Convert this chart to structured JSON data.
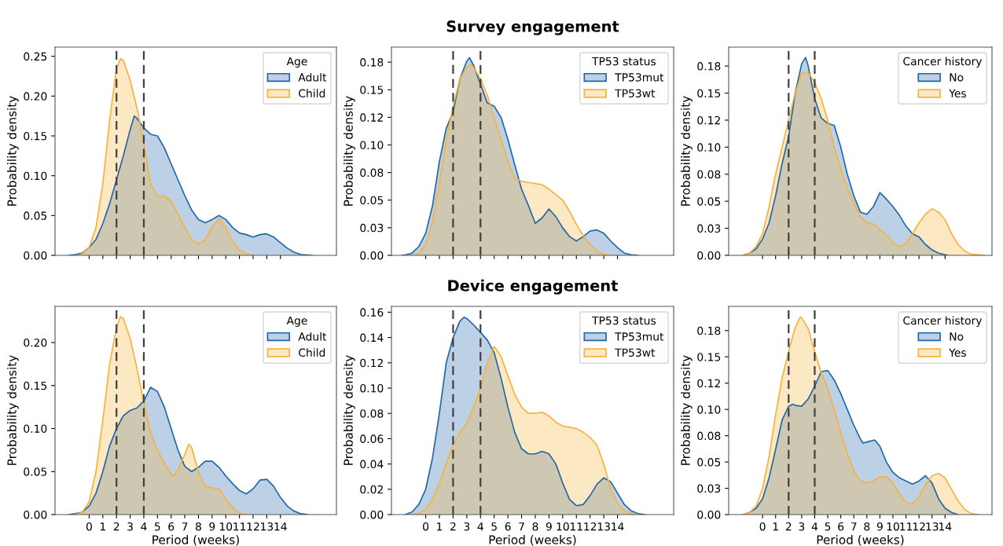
{
  "chart_data": [
    {
      "type": "area",
      "legend_title": "Age",
      "ylabel": "Probability density",
      "legend": "top right",
      "tick_labels": "y",
      "grid": false,
      "xlim": [
        -2.5,
        18.1
      ],
      "xticks": [
        0,
        1,
        2,
        3,
        4,
        5,
        6,
        7,
        8,
        9,
        10,
        11,
        12,
        13,
        14
      ],
      "ylim": [
        0,
        0.2615
      ],
      "yticks": [
        {
          "value": 0,
          "label": "0.00"
        },
        {
          "value": 0.05,
          "label": "0.05"
        },
        {
          "value": 0.1,
          "label": "0.10"
        },
        {
          "value": 0.15,
          "label": "0.15"
        },
        {
          "value": 0.2,
          "label": "0.20"
        },
        {
          "value": 0.25,
          "label": "0.25"
        }
      ],
      "ref_lines": [
        {
          "axis": "x",
          "value": 2,
          "color": "#404040",
          "line_style": "dashed"
        },
        {
          "axis": "x",
          "value": 4,
          "color": "#404040",
          "line_style": "dashed"
        }
      ],
      "series": [
        {
          "name": "Adult",
          "color": "#2066a8",
          "x": [
            -1.5,
            -1,
            -0.5,
            0,
            0.5,
            1,
            1.5,
            2,
            2.5,
            3,
            3.3,
            3.5,
            4,
            4.5,
            5,
            5.5,
            6,
            6.5,
            7,
            7.5,
            8,
            8.5,
            9,
            9.5,
            10,
            10.5,
            11,
            11.5,
            12,
            12.5,
            13,
            13.5,
            14,
            14.5,
            15,
            15.5,
            16.3
          ],
          "values": [
            0,
            0.001,
            0.003,
            0.01,
            0.02,
            0.04,
            0.065,
            0.095,
            0.125,
            0.158,
            0.175,
            0.172,
            0.16,
            0.152,
            0.15,
            0.135,
            0.115,
            0.095,
            0.075,
            0.057,
            0.045,
            0.041,
            0.045,
            0.05,
            0.045,
            0.035,
            0.028,
            0.026,
            0.023,
            0.026,
            0.027,
            0.023,
            0.016,
            0.009,
            0.004,
            0.001,
            0
          ]
        },
        {
          "name": "Child",
          "color": "#f7b23b",
          "x": [
            -0.8,
            -0.5,
            0,
            0.5,
            1,
            1.5,
            2,
            2.3,
            2.5,
            3,
            3.5,
            4,
            4.5,
            5,
            5.5,
            6,
            6.5,
            7,
            7.5,
            8,
            8.5,
            9,
            9.5,
            10,
            10.5,
            11,
            11.5,
            12
          ],
          "values": [
            0,
            0.002,
            0.01,
            0.035,
            0.09,
            0.17,
            0.235,
            0.247,
            0.245,
            0.22,
            0.185,
            0.14,
            0.09,
            0.073,
            0.075,
            0.068,
            0.052,
            0.035,
            0.02,
            0.014,
            0.02,
            0.035,
            0.046,
            0.035,
            0.018,
            0.007,
            0.002,
            0
          ]
        }
      ]
    },
    {
      "type": "area",
      "title": "Survey engagement",
      "legend_title": "TP53 status",
      "ylabel": "Probability density",
      "legend": "top right",
      "tick_labels": "y",
      "grid": false,
      "xlim": [
        -2.5,
        18.1
      ],
      "xticks": [
        0,
        1,
        2,
        3,
        4,
        5,
        6,
        7,
        8,
        9,
        10,
        11,
        12,
        13,
        14
      ],
      "ylim": [
        0,
        0.1886
      ],
      "yticks": [
        {
          "value": 0,
          "label": "0.00"
        },
        {
          "value": 0.025,
          "label": "0.03"
        },
        {
          "value": 0.05,
          "label": "0.05"
        },
        {
          "value": 0.075,
          "label": "0.08"
        },
        {
          "value": 0.1,
          "label": "0.10"
        },
        {
          "value": 0.125,
          "label": "0.12"
        },
        {
          "value": 0.15,
          "label": "0.15"
        },
        {
          "value": 0.175,
          "label": "0.18"
        }
      ],
      "ref_lines": [
        {
          "axis": "x",
          "value": 2,
          "color": "#404040",
          "line_style": "dashed"
        },
        {
          "axis": "x",
          "value": 4,
          "color": "#404040",
          "line_style": "dashed"
        }
      ],
      "series": [
        {
          "name": "TP53mut",
          "color": "#2066a8",
          "x": [
            -1.7,
            -1.5,
            -1,
            -0.5,
            0,
            0.5,
            1,
            1.5,
            2,
            2.5,
            3,
            3.2,
            3.5,
            4,
            4.5,
            5,
            5.5,
            6,
            6.5,
            7,
            7.5,
            8,
            8.5,
            9,
            9.5,
            10,
            10.5,
            11,
            11.5,
            12,
            12.5,
            13,
            13.5,
            14,
            14.5,
            15,
            15.5
          ],
          "values": [
            0,
            0.0003,
            0.002,
            0.008,
            0.02,
            0.045,
            0.085,
            0.115,
            0.13,
            0.16,
            0.176,
            0.179,
            0.172,
            0.155,
            0.138,
            0.135,
            0.125,
            0.105,
            0.082,
            0.06,
            0.045,
            0.029,
            0.034,
            0.042,
            0.035,
            0.025,
            0.017,
            0.013,
            0.017,
            0.022,
            0.023,
            0.02,
            0.013,
            0.007,
            0.002,
            0.0005,
            0
          ]
        },
        {
          "name": "TP53wt",
          "color": "#f7b23b",
          "x": [
            -0.9,
            -0.5,
            0,
            0.5,
            1,
            1.5,
            2,
            2.5,
            3,
            3.3,
            3.5,
            4,
            4.5,
            5,
            5.5,
            6,
            6.5,
            7,
            7.5,
            8,
            8.5,
            9,
            9.5,
            10,
            10.5,
            11,
            11.5,
            12,
            12.5,
            13,
            13.5
          ],
          "values": [
            0,
            0.002,
            0.01,
            0.03,
            0.065,
            0.105,
            0.135,
            0.16,
            0.17,
            0.173,
            0.17,
            0.16,
            0.145,
            0.125,
            0.105,
            0.085,
            0.07,
            0.067,
            0.066,
            0.065,
            0.064,
            0.06,
            0.055,
            0.05,
            0.04,
            0.028,
            0.018,
            0.01,
            0.004,
            0.001,
            0
          ]
        }
      ]
    },
    {
      "type": "area",
      "legend_title": "Cancer history",
      "ylabel": "Probability density",
      "legend": "top right",
      "tick_labels": "y",
      "grid": false,
      "xlim": [
        -2.6,
        17.6
      ],
      "xticks": [
        0,
        1,
        2,
        3,
        4,
        5,
        6,
        7,
        8,
        9,
        10,
        11,
        12,
        13,
        14
      ],
      "ylim": [
        0,
        0.1925
      ],
      "yticks": [
        {
          "value": 0,
          "label": "0.00"
        },
        {
          "value": 0.025,
          "label": "0.03"
        },
        {
          "value": 0.05,
          "label": "0.05"
        },
        {
          "value": 0.075,
          "label": "0.08"
        },
        {
          "value": 0.1,
          "label": "0.10"
        },
        {
          "value": 0.125,
          "label": "0.12"
        },
        {
          "value": 0.15,
          "label": "0.15"
        },
        {
          "value": 0.175,
          "label": "0.18"
        }
      ],
      "ref_lines": [
        {
          "axis": "x",
          "value": 2,
          "color": "#404040",
          "line_style": "dashed"
        },
        {
          "axis": "x",
          "value": 4,
          "color": "#404040",
          "line_style": "dashed"
        }
      ],
      "series": [
        {
          "name": "No",
          "color": "#2066a8",
          "x": [
            -1.5,
            -1,
            -0.5,
            0,
            0.5,
            1,
            1.5,
            2,
            2.5,
            3,
            3.3,
            3.5,
            4,
            4.5,
            5,
            5.5,
            6,
            6.5,
            7,
            7.5,
            8,
            8.5,
            9,
            9.5,
            10,
            10.5,
            11,
            11.5,
            12,
            12.5,
            13,
            13.5,
            14.2
          ],
          "values": [
            0,
            0.002,
            0.006,
            0.015,
            0.03,
            0.055,
            0.085,
            0.11,
            0.15,
            0.177,
            0.183,
            0.175,
            0.145,
            0.127,
            0.122,
            0.12,
            0.1,
            0.075,
            0.055,
            0.04,
            0.038,
            0.045,
            0.058,
            0.052,
            0.045,
            0.037,
            0.027,
            0.02,
            0.017,
            0.01,
            0.005,
            0.002,
            0
          ]
        },
        {
          "name": "Yes",
          "color": "#f7b23b",
          "x": [
            -1.5,
            -1,
            -0.5,
            0,
            0.5,
            1,
            1.5,
            2,
            2.5,
            3,
            3.3,
            3.5,
            4,
            4.5,
            5,
            5.5,
            6,
            6.5,
            7,
            7.5,
            8,
            8.5,
            9,
            9.5,
            10,
            10.5,
            11,
            11.5,
            12,
            12.5,
            13,
            13.5,
            14,
            14.5,
            15,
            15.5,
            16,
            17
          ],
          "values": [
            0,
            0.002,
            0.008,
            0.02,
            0.045,
            0.075,
            0.1,
            0.125,
            0.15,
            0.168,
            0.169,
            0.169,
            0.16,
            0.145,
            0.125,
            0.1,
            0.08,
            0.062,
            0.048,
            0.036,
            0.03,
            0.029,
            0.024,
            0.019,
            0.012,
            0.008,
            0.011,
            0.02,
            0.03,
            0.038,
            0.043,
            0.04,
            0.033,
            0.02,
            0.01,
            0.004,
            0.001,
            0
          ]
        }
      ]
    },
    {
      "type": "area",
      "legend_title": "Age",
      "xlabel": "Period (weeks)",
      "ylabel": "Probability density",
      "legend": "top right",
      "grid": false,
      "xlim": [
        -2.5,
        18.1
      ],
      "xticks": [
        0,
        1,
        2,
        3,
        4,
        5,
        6,
        7,
        8,
        9,
        10,
        11,
        12,
        13,
        14
      ],
      "ylim": [
        0,
        0.242
      ],
      "yticks": [
        {
          "value": 0,
          "label": "0.00"
        },
        {
          "value": 0.05,
          "label": "0.05"
        },
        {
          "value": 0.1,
          "label": "0.10"
        },
        {
          "value": 0.15,
          "label": "0.15"
        },
        {
          "value": 0.2,
          "label": "0.20"
        }
      ],
      "ref_lines": [
        {
          "axis": "x",
          "value": 2,
          "color": "#404040",
          "line_style": "dashed"
        },
        {
          "axis": "x",
          "value": 4,
          "color": "#404040",
          "line_style": "dashed"
        }
      ],
      "series": [
        {
          "name": "Adult",
          "color": "#2066a8",
          "x": [
            -1.5,
            -1,
            -0.5,
            0,
            0.5,
            1,
            1.5,
            2,
            2.5,
            3,
            3.5,
            4,
            4.5,
            5,
            5.5,
            6,
            6.5,
            7,
            7.5,
            8,
            8.5,
            9,
            9.5,
            10,
            10.5,
            11,
            11.5,
            12,
            12.5,
            13,
            13.5,
            14,
            14.5,
            15,
            15.5,
            16
          ],
          "values": [
            0,
            0.001,
            0.003,
            0.01,
            0.025,
            0.05,
            0.08,
            0.1,
            0.115,
            0.121,
            0.124,
            0.132,
            0.148,
            0.143,
            0.125,
            0.1,
            0.075,
            0.056,
            0.05,
            0.055,
            0.062,
            0.062,
            0.055,
            0.045,
            0.036,
            0.028,
            0.024,
            0.03,
            0.04,
            0.041,
            0.033,
            0.02,
            0.01,
            0.004,
            0.001,
            0
          ]
        },
        {
          "name": "Child",
          "color": "#f7b23b",
          "x": [
            -1,
            -0.5,
            0,
            0.5,
            1,
            1.5,
            2,
            2.3,
            2.5,
            3,
            3.5,
            4,
            4.5,
            5,
            5.5,
            6,
            6.2,
            6.5,
            7,
            7.3,
            7.5,
            8,
            8.5,
            9,
            9.5,
            10,
            10.5,
            11,
            11.5
          ],
          "values": [
            0,
            0.003,
            0.015,
            0.05,
            0.11,
            0.175,
            0.218,
            0.23,
            0.228,
            0.205,
            0.17,
            0.13,
            0.095,
            0.075,
            0.06,
            0.047,
            0.045,
            0.052,
            0.07,
            0.082,
            0.078,
            0.05,
            0.033,
            0.031,
            0.03,
            0.018,
            0.008,
            0.002,
            0
          ]
        }
      ]
    },
    {
      "type": "area",
      "title": "Device engagement",
      "legend_title": "TP53 status",
      "xlabel": "Period (weeks)",
      "ylabel": "Probability density",
      "legend": "top right",
      "grid": false,
      "xlim": [
        -2.5,
        18.1
      ],
      "xticks": [
        0,
        1,
        2,
        3,
        4,
        5,
        6,
        7,
        8,
        9,
        10,
        11,
        12,
        13,
        14
      ],
      "ylim": [
        0,
        0.1646
      ],
      "yticks": [
        {
          "value": 0,
          "label": "0.00"
        },
        {
          "value": 0.02,
          "label": "0.02"
        },
        {
          "value": 0.04,
          "label": "0.04"
        },
        {
          "value": 0.06,
          "label": "0.06"
        },
        {
          "value": 0.08,
          "label": "0.08"
        },
        {
          "value": 0.1,
          "label": "0.10"
        },
        {
          "value": 0.12,
          "label": "0.12"
        },
        {
          "value": 0.14,
          "label": "0.14"
        },
        {
          "value": 0.16,
          "label": "0.16"
        }
      ],
      "ref_lines": [
        {
          "axis": "x",
          "value": 2,
          "color": "#404040",
          "line_style": "dashed"
        },
        {
          "axis": "x",
          "value": 4,
          "color": "#404040",
          "line_style": "dashed"
        }
      ],
      "series": [
        {
          "name": "TP53mut",
          "color": "#2066a8",
          "x": [
            -1.5,
            -1,
            -0.5,
            0,
            0.5,
            1,
            1.5,
            2,
            2.5,
            2.8,
            3,
            3.5,
            4,
            4.5,
            5,
            5.5,
            6,
            6.5,
            7,
            7.5,
            8,
            8.5,
            9,
            9.5,
            10,
            10.5,
            11,
            11.5,
            12,
            12.5,
            13,
            13.5,
            14,
            14.5,
            15,
            15.5,
            16
          ],
          "values": [
            0,
            0.002,
            0.008,
            0.02,
            0.045,
            0.08,
            0.12,
            0.14,
            0.153,
            0.156,
            0.155,
            0.15,
            0.144,
            0.138,
            0.128,
            0.108,
            0.085,
            0.065,
            0.052,
            0.048,
            0.048,
            0.05,
            0.048,
            0.04,
            0.025,
            0.012,
            0.007,
            0.008,
            0.015,
            0.024,
            0.029,
            0.026,
            0.017,
            0.008,
            0.003,
            0.0008,
            0
          ]
        },
        {
          "name": "TP53wt",
          "color": "#f7b23b",
          "x": [
            -1,
            -0.5,
            0,
            0.5,
            1,
            1.5,
            2,
            2.5,
            3,
            3.5,
            4,
            4.5,
            5,
            5.5,
            6,
            6.5,
            7,
            7.5,
            8,
            8.5,
            9,
            9.5,
            10,
            10.5,
            11,
            11.5,
            12,
            12.5,
            13,
            13.5,
            14,
            14.5,
            15,
            15.5
          ],
          "values": [
            0,
            0.001,
            0.004,
            0.012,
            0.025,
            0.04,
            0.055,
            0.065,
            0.072,
            0.085,
            0.1,
            0.12,
            0.133,
            0.125,
            0.11,
            0.095,
            0.085,
            0.08,
            0.08,
            0.081,
            0.078,
            0.073,
            0.07,
            0.069,
            0.068,
            0.065,
            0.061,
            0.055,
            0.04,
            0.02,
            0.009,
            0.003,
            0.001,
            0
          ]
        }
      ]
    },
    {
      "type": "area",
      "legend_title": "Cancer history",
      "xlabel": "Period (weeks)",
      "ylabel": "Probability density",
      "legend": "top right",
      "grid": false,
      "xlim": [
        -2.6,
        17.6
      ],
      "xticks": [
        0,
        1,
        2,
        3,
        4,
        5,
        6,
        7,
        8,
        9,
        10,
        11,
        12,
        13,
        14
      ],
      "ylim": [
        0,
        0.198
      ],
      "yticks": [
        {
          "value": 0,
          "label": "0.00"
        },
        {
          "value": 0.025,
          "label": "0.03"
        },
        {
          "value": 0.05,
          "label": "0.05"
        },
        {
          "value": 0.075,
          "label": "0.08"
        },
        {
          "value": 0.1,
          "label": "0.10"
        },
        {
          "value": 0.125,
          "label": "0.12"
        },
        {
          "value": 0.15,
          "label": "0.15"
        },
        {
          "value": 0.175,
          "label": "0.18"
        }
      ],
      "ref_lines": [
        {
          "axis": "x",
          "value": 2,
          "color": "#404040",
          "line_style": "dashed"
        },
        {
          "axis": "x",
          "value": 4,
          "color": "#404040",
          "line_style": "dashed"
        }
      ],
      "series": [
        {
          "name": "No",
          "color": "#2066a8",
          "x": [
            -1.5,
            -1,
            -0.5,
            0,
            0.5,
            1,
            1.5,
            2,
            2.3,
            2.5,
            3,
            3.5,
            4,
            4.5,
            5,
            5.5,
            6,
            6.5,
            7,
            7.5,
            7.7,
            8,
            8.6,
            9,
            9.5,
            10,
            10.5,
            11,
            11.5,
            12,
            12.5,
            13,
            13.5,
            14,
            14.5,
            15
          ],
          "values": [
            0,
            0.002,
            0.006,
            0.015,
            0.035,
            0.062,
            0.09,
            0.103,
            0.105,
            0.104,
            0.103,
            0.11,
            0.122,
            0.136,
            0.137,
            0.128,
            0.115,
            0.1,
            0.085,
            0.072,
            0.068,
            0.069,
            0.071,
            0.065,
            0.05,
            0.04,
            0.035,
            0.032,
            0.029,
            0.032,
            0.037,
            0.03,
            0.015,
            0.006,
            0.002,
            0
          ]
        },
        {
          "name": "Yes",
          "color": "#f7b23b",
          "x": [
            -1.5,
            -1,
            -0.5,
            0,
            0.5,
            1,
            1.5,
            2,
            2.5,
            2.9,
            3,
            3.5,
            4,
            4.5,
            5,
            5.5,
            6,
            6.5,
            7,
            7.5,
            8,
            8.5,
            9,
            9.5,
            10,
            10.5,
            11,
            11.5,
            12,
            12.5,
            13,
            13.5,
            14,
            14.5,
            15,
            15.5,
            16,
            16.5
          ],
          "values": [
            0,
            0.002,
            0.008,
            0.025,
            0.055,
            0.095,
            0.13,
            0.155,
            0.178,
            0.188,
            0.187,
            0.177,
            0.155,
            0.135,
            0.12,
            0.1,
            0.078,
            0.058,
            0.042,
            0.032,
            0.03,
            0.032,
            0.036,
            0.036,
            0.03,
            0.02,
            0.011,
            0.01,
            0.017,
            0.028,
            0.037,
            0.039,
            0.035,
            0.024,
            0.013,
            0.005,
            0.001,
            0
          ]
        }
      ]
    }
  ]
}
